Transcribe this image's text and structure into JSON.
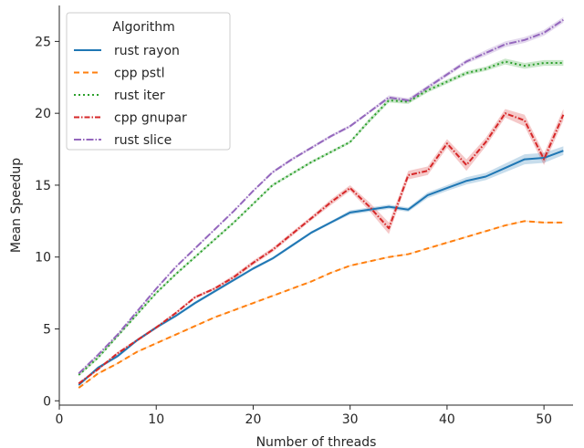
{
  "chart_data": {
    "type": "line",
    "title": "",
    "xlabel": "Number of threads",
    "ylabel": "Mean Speedup",
    "xlim": [
      0,
      53
    ],
    "ylim": [
      -0.3,
      27.5
    ],
    "xticks": [
      0,
      10,
      20,
      30,
      40,
      50
    ],
    "yticks": [
      0,
      5,
      10,
      15,
      20,
      25
    ],
    "grid": false,
    "legend": {
      "title": "Algorithm",
      "placement": "top-left"
    },
    "x": [
      2,
      4,
      6,
      8,
      10,
      12,
      14,
      16,
      18,
      20,
      22,
      24,
      26,
      28,
      30,
      32,
      34,
      36,
      38,
      40,
      42,
      44,
      46,
      48,
      50,
      52
    ],
    "series": [
      {
        "name": "rust rayon",
        "color": "#1f77b4",
        "dash": "solid",
        "values": [
          1.1,
          2.3,
          3.1,
          4.2,
          5.1,
          5.9,
          6.8,
          7.6,
          8.4,
          9.2,
          9.9,
          10.8,
          11.7,
          12.4,
          13.1,
          13.3,
          13.5,
          13.3,
          14.3,
          14.8,
          15.3,
          15.6,
          16.2,
          16.8,
          16.9,
          17.4
        ],
        "band": [
          0.1,
          0.1,
          0.1,
          0.1,
          0.1,
          0.1,
          0.1,
          0.1,
          0.1,
          0.1,
          0.1,
          0.1,
          0.1,
          0.1,
          0.15,
          0.15,
          0.15,
          0.15,
          0.2,
          0.2,
          0.25,
          0.25,
          0.3,
          0.35,
          0.35,
          0.3
        ]
      },
      {
        "name": "cpp pstl",
        "color": "#ff7f0e",
        "dash": "6,4",
        "values": [
          0.9,
          1.9,
          2.6,
          3.4,
          4.0,
          4.6,
          5.2,
          5.8,
          6.3,
          6.8,
          7.3,
          7.8,
          8.3,
          8.9,
          9.4,
          9.7,
          10.0,
          10.2,
          10.6,
          11.0,
          11.4,
          11.8,
          12.2,
          12.5,
          12.4,
          12.4
        ],
        "band": [
          0.05,
          0.05,
          0.05,
          0.05,
          0.05,
          0.05,
          0.05,
          0.05,
          0.05,
          0.05,
          0.05,
          0.05,
          0.05,
          0.05,
          0.05,
          0.05,
          0.05,
          0.05,
          0.05,
          0.05,
          0.05,
          0.05,
          0.05,
          0.05,
          0.05,
          0.05
        ]
      },
      {
        "name": "rust iter",
        "color": "#2ca02c",
        "dash": "2,3",
        "values": [
          1.8,
          3.0,
          4.5,
          6.0,
          7.5,
          8.8,
          10.0,
          11.2,
          12.4,
          13.7,
          15.0,
          15.8,
          16.6,
          17.3,
          18.0,
          19.5,
          20.9,
          20.8,
          21.6,
          22.2,
          22.8,
          23.1,
          23.6,
          23.3,
          23.5,
          23.5
        ],
        "band": [
          0.1,
          0.1,
          0.1,
          0.1,
          0.1,
          0.1,
          0.1,
          0.1,
          0.1,
          0.1,
          0.1,
          0.1,
          0.1,
          0.1,
          0.1,
          0.15,
          0.15,
          0.15,
          0.15,
          0.15,
          0.15,
          0.15,
          0.2,
          0.2,
          0.2,
          0.2
        ]
      },
      {
        "name": "cpp gnupar",
        "color": "#d62728",
        "dash": "6,2,1.5,2",
        "values": [
          1.2,
          2.2,
          3.3,
          4.2,
          5.1,
          6.1,
          7.2,
          7.8,
          8.6,
          9.6,
          10.5,
          11.6,
          12.7,
          13.8,
          14.8,
          13.5,
          12.0,
          15.7,
          16.0,
          17.9,
          16.4,
          18.0,
          20.0,
          19.5,
          16.8,
          19.9
        ],
        "band": [
          0.1,
          0.1,
          0.1,
          0.1,
          0.1,
          0.1,
          0.1,
          0.1,
          0.15,
          0.15,
          0.15,
          0.15,
          0.15,
          0.2,
          0.2,
          0.3,
          0.4,
          0.3,
          0.3,
          0.3,
          0.4,
          0.3,
          0.3,
          0.4,
          0.4,
          0.4
        ]
      },
      {
        "name": "rust slice",
        "color": "#9467bd",
        "dash": "8,2,1.5,2",
        "values": [
          1.9,
          3.2,
          4.6,
          6.2,
          7.8,
          9.3,
          10.6,
          11.9,
          13.2,
          14.6,
          15.9,
          16.8,
          17.6,
          18.4,
          19.1,
          20.1,
          21.1,
          20.9,
          21.8,
          22.7,
          23.6,
          24.2,
          24.8,
          25.1,
          25.6,
          26.5
        ],
        "band": [
          0.05,
          0.05,
          0.05,
          0.05,
          0.05,
          0.05,
          0.05,
          0.05,
          0.05,
          0.05,
          0.1,
          0.1,
          0.1,
          0.1,
          0.1,
          0.1,
          0.15,
          0.15,
          0.15,
          0.15,
          0.15,
          0.2,
          0.2,
          0.2,
          0.2,
          0.2
        ]
      }
    ]
  }
}
